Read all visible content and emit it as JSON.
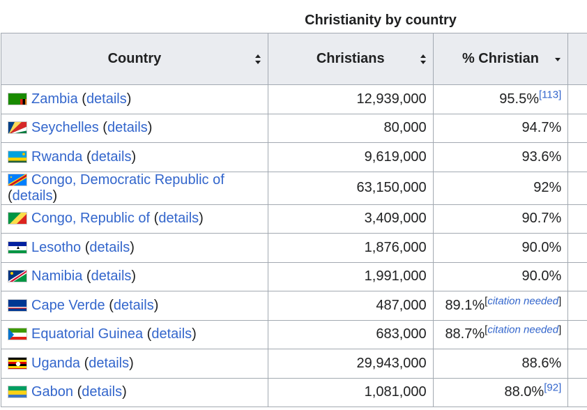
{
  "caption": "Christianity by country",
  "headers": {
    "country": "Country",
    "christians": "Christians",
    "percent": "% Christian"
  },
  "details_label": "details",
  "rows": [
    {
      "country": "Zambia",
      "christians": "12,939,000",
      "percent": "95.5%",
      "ref": "[113]",
      "flag": "zambia-flag-icon"
    },
    {
      "country": "Seychelles",
      "christians": "80,000",
      "percent": "94.7%",
      "ref": "",
      "flag": "seychelles-flag-icon"
    },
    {
      "country": "Rwanda",
      "christians": "9,619,000",
      "percent": "93.6%",
      "ref": "",
      "flag": "rwanda-flag-icon"
    },
    {
      "country": "Congo, Democratic Republic of",
      "christians": "63,150,000",
      "percent": "92%",
      "ref": "",
      "flag": "drc-flag-icon"
    },
    {
      "country": "Congo, Republic of",
      "christians": "3,409,000",
      "percent": "90.7%",
      "ref": "",
      "flag": "congo-flag-icon"
    },
    {
      "country": "Lesotho",
      "christians": "1,876,000",
      "percent": "90.0%",
      "ref": "",
      "flag": "lesotho-flag-icon"
    },
    {
      "country": "Namibia",
      "christians": "1,991,000",
      "percent": "90.0%",
      "ref": "",
      "flag": "namibia-flag-icon"
    },
    {
      "country": "Cape Verde",
      "christians": "487,000",
      "percent": "89.1%",
      "ref": "citation needed",
      "flag": "cape-verde-flag-icon"
    },
    {
      "country": "Equatorial Guinea",
      "christians": "683,000",
      "percent": "88.7%",
      "ref": "citation needed",
      "flag": "equatorial-guinea-flag-icon"
    },
    {
      "country": "Uganda",
      "christians": "29,943,000",
      "percent": "88.6%",
      "ref": "",
      "flag": "uganda-flag-icon"
    },
    {
      "country": "Gabon",
      "christians": "1,081,000",
      "percent": "88.0%",
      "ref": "[92]",
      "flag": "gabon-flag-icon"
    }
  ]
}
